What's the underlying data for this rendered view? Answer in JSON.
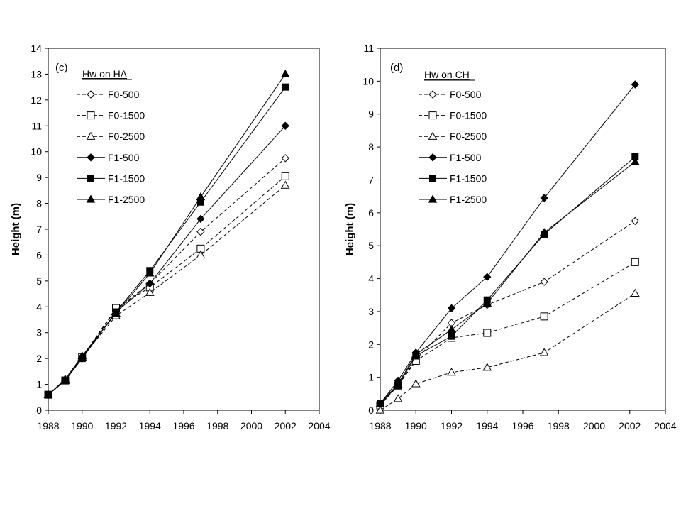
{
  "chart_data": [
    {
      "type": "line",
      "panel_label": "(c)",
      "legend_title": "Hw on HA",
      "ylabel": "Height (m)",
      "xlabel": "",
      "xlim": [
        1988,
        2004
      ],
      "ylim": [
        0,
        14
      ],
      "xticks": [
        "1988",
        "1990",
        "1992",
        "1994",
        "1996",
        "1998",
        "2000",
        "2002",
        "2004"
      ],
      "yticks": [
        "0",
        "1",
        "2",
        "3",
        "4",
        "5",
        "6",
        "7",
        "8",
        "9",
        "10",
        "11",
        "12",
        "13",
        "14"
      ],
      "grid": false,
      "legend_position": "top-left",
      "x": [
        1988,
        1989,
        1990,
        1992,
        1994,
        1997,
        2002
      ],
      "series": [
        {
          "name": "F0-500",
          "marker": "diamond",
          "filled": false,
          "dashed": true,
          "values": [
            0.6,
            1.15,
            2.05,
            3.9,
            4.9,
            6.9,
            9.75
          ]
        },
        {
          "name": "F0-1500",
          "marker": "square",
          "filled": false,
          "dashed": true,
          "values": [
            0.6,
            1.15,
            2.05,
            3.95,
            4.75,
            6.25,
            9.05
          ]
        },
        {
          "name": "F0-2500",
          "marker": "triangle",
          "filled": false,
          "dashed": true,
          "values": [
            0.6,
            1.15,
            2.05,
            3.65,
            4.55,
            6.0,
            8.7
          ]
        },
        {
          "name": "F1-500",
          "marker": "diamond",
          "filled": true,
          "dashed": false,
          "values": [
            0.6,
            1.15,
            2.05,
            3.8,
            4.9,
            7.4,
            11.0
          ]
        },
        {
          "name": "F1-1500",
          "marker": "square",
          "filled": true,
          "dashed": false,
          "values": [
            0.6,
            1.15,
            2.0,
            3.8,
            5.4,
            8.05,
            12.5
          ]
        },
        {
          "name": "F1-2500",
          "marker": "triangle",
          "filled": true,
          "dashed": false,
          "values": [
            0.6,
            1.2,
            2.1,
            3.75,
            5.3,
            8.25,
            13.0
          ]
        }
      ]
    },
    {
      "type": "line",
      "panel_label": "(d)",
      "legend_title": "Hw on CH",
      "ylabel": "Height (m)",
      "xlabel": "",
      "xlim": [
        1988,
        2004
      ],
      "ylim": [
        0,
        11
      ],
      "xticks": [
        "1988",
        "1990",
        "1992",
        "1994",
        "1996",
        "1998",
        "2000",
        "2002",
        "2004"
      ],
      "yticks": [
        "0",
        "1",
        "2",
        "3",
        "4",
        "5",
        "6",
        "7",
        "8",
        "9",
        "10",
        "11"
      ],
      "grid": false,
      "legend_position": "top-left",
      "x": [
        1988,
        1989,
        1990,
        1992,
        1994,
        1997.2,
        2002.3
      ],
      "series": [
        {
          "name": "F0-500",
          "marker": "diamond",
          "filled": false,
          "dashed": true,
          "values": [
            0.15,
            0.75,
            1.55,
            2.65,
            3.2,
            3.9,
            5.75
          ]
        },
        {
          "name": "F0-1500",
          "marker": "square",
          "filled": false,
          "dashed": true,
          "values": [
            0.15,
            0.75,
            1.5,
            2.2,
            2.35,
            2.85,
            4.5
          ]
        },
        {
          "name": "F0-2500",
          "marker": "triangle",
          "filled": false,
          "dashed": true,
          "values": [
            0.0,
            0.35,
            0.8,
            1.15,
            1.3,
            1.75,
            3.55
          ]
        },
        {
          "name": "F1-500",
          "marker": "diamond",
          "filled": true,
          "dashed": false,
          "values": [
            0.2,
            0.9,
            1.75,
            3.1,
            4.05,
            6.45,
            9.9
          ]
        },
        {
          "name": "F1-1500",
          "marker": "square",
          "filled": true,
          "dashed": false,
          "values": [
            0.2,
            0.75,
            1.65,
            2.25,
            3.35,
            5.35,
            7.7
          ]
        },
        {
          "name": "F1-2500",
          "marker": "triangle",
          "filled": true,
          "dashed": false,
          "values": [
            0.2,
            0.8,
            1.7,
            2.45,
            3.25,
            5.4,
            7.55
          ]
        }
      ]
    }
  ]
}
